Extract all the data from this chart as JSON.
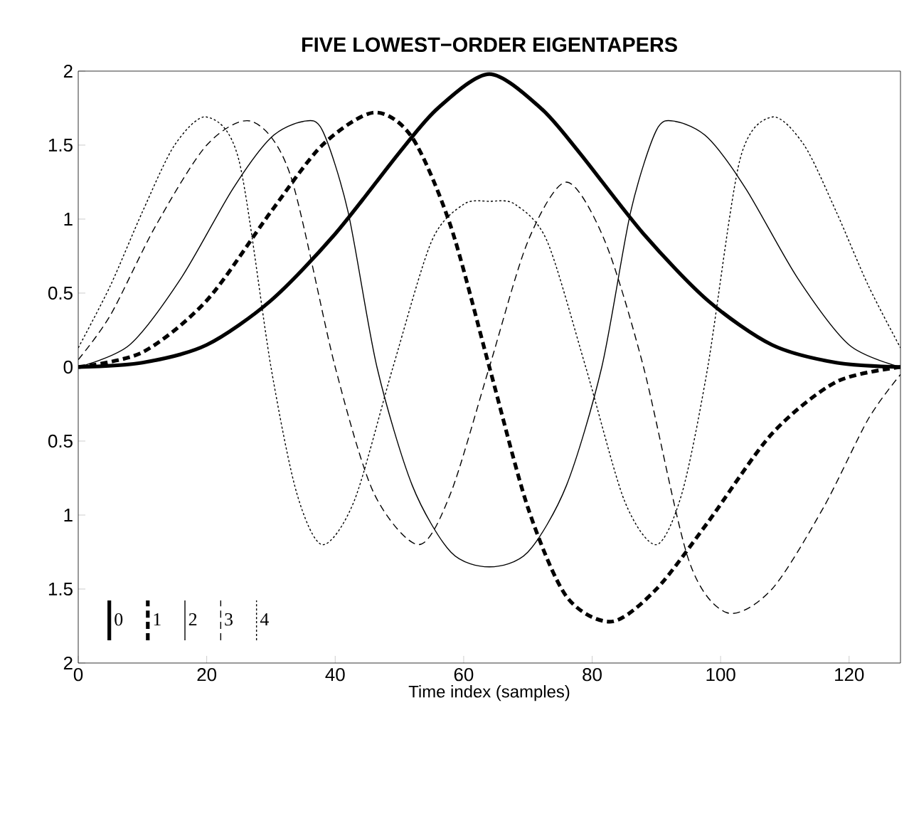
{
  "chart_data": {
    "type": "line",
    "title": "FIVE LOWEST−ORDER EIGENTAPERS",
    "xlabel": "Time index (samples)",
    "xlim": [
      0,
      128
    ],
    "xticks": [
      0,
      20,
      40,
      60,
      80,
      100,
      120
    ],
    "ylim": [
      -2,
      2
    ],
    "yticks": [
      {
        "value": -2,
        "label": "2"
      },
      {
        "value": -1.5,
        "label": "1.5"
      },
      {
        "value": -1,
        "label": "1"
      },
      {
        "value": -0.5,
        "label": "0.5"
      },
      0,
      0.5,
      1,
      1.5,
      2
    ],
    "legend": "bottom left",
    "grid": false,
    "series": [
      {
        "name": "0",
        "color": "#000000",
        "line_style": "solid",
        "x": [
          0,
          10,
          20,
          30,
          40,
          50,
          56,
          64,
          72,
          78,
          88,
          98,
          108,
          118,
          128
        ],
        "values": [
          0,
          0.03,
          0.15,
          0.45,
          0.9,
          1.45,
          1.75,
          1.98,
          1.75,
          1.45,
          0.9,
          0.45,
          0.15,
          0.03,
          0
        ]
      },
      {
        "name": "1",
        "color": "#000000",
        "line_style": "dashed",
        "x": [
          0,
          10,
          20,
          30,
          38,
          46,
          52,
          58,
          64,
          70,
          76,
          83,
          90,
          98,
          108,
          118,
          128
        ],
        "values": [
          0,
          0.1,
          0.45,
          1.05,
          1.5,
          1.72,
          1.55,
          0.95,
          0,
          -0.95,
          -1.55,
          -1.72,
          -1.5,
          -1.05,
          -0.45,
          -0.1,
          0
        ]
      },
      {
        "name": "2",
        "color": "#000000",
        "line_style": "solid",
        "x": [
          0,
          8,
          16,
          24,
          30,
          35,
          38,
          42,
          46.5,
          52,
          58,
          64,
          70,
          76,
          81.5,
          86,
          90,
          93,
          98,
          104,
          112,
          120,
          128
        ],
        "values": [
          0,
          0.15,
          0.6,
          1.2,
          1.55,
          1.66,
          1.6,
          1.05,
          0,
          -0.8,
          -1.25,
          -1.35,
          -1.25,
          -0.8,
          0,
          1.05,
          1.6,
          1.66,
          1.55,
          1.2,
          0.6,
          0.15,
          0
        ]
      },
      {
        "name": "3",
        "color": "#000000",
        "line_style": "dashed",
        "x": [
          0,
          5,
          12,
          20,
          27,
          33,
          40,
          46,
          53,
          58,
          64,
          70,
          76,
          82,
          88,
          95,
          101,
          108,
          116,
          123,
          128
        ],
        "values": [
          0.05,
          0.35,
          0.95,
          1.5,
          1.66,
          1.3,
          0,
          -0.85,
          -1.2,
          -0.85,
          0,
          0.85,
          1.25,
          0.85,
          0,
          -1.3,
          -1.66,
          -1.5,
          -0.95,
          -0.35,
          -0.05
        ]
      },
      {
        "name": "4",
        "color": "#000000",
        "line_style": "dotted",
        "x": [
          0,
          5,
          10,
          15,
          20,
          25,
          30,
          34,
          38,
          43,
          49,
          55,
          60,
          64,
          68,
          73,
          79,
          85,
          90,
          94,
          98,
          103,
          108,
          113,
          118,
          123,
          128
        ],
        "values": [
          0.13,
          0.55,
          1.05,
          1.5,
          1.69,
          1.4,
          0,
          -0.85,
          -1.2,
          -0.9,
          0,
          0.85,
          1.1,
          1.12,
          1.1,
          0.85,
          0,
          -0.9,
          -1.2,
          -0.85,
          0,
          1.4,
          1.69,
          1.5,
          1.05,
          0.55,
          0.13
        ]
      }
    ]
  }
}
